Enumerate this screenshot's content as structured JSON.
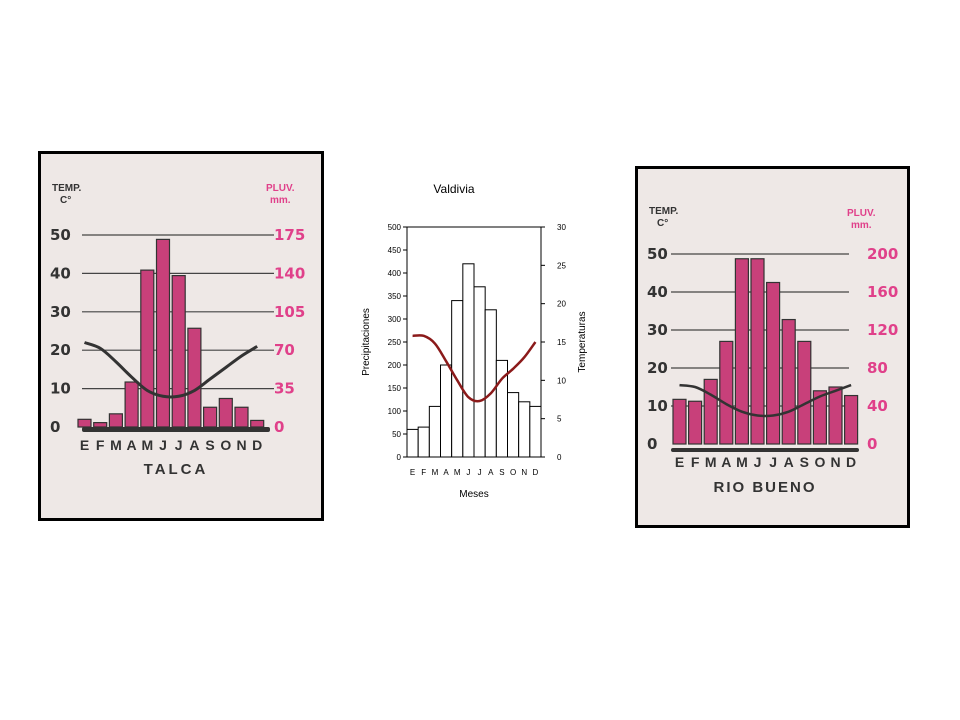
{
  "months": [
    "E",
    "F",
    "M",
    "A",
    "M",
    "J",
    "J",
    "A",
    "S",
    "O",
    "N",
    "D"
  ],
  "colors": {
    "bar_pink": "#c8407a",
    "temp_line_old": "#333333",
    "temp_line_valdivia": "#8b1a1a",
    "axis_pink": "#e0408a",
    "paper": "#eee8e6",
    "frame": "#000000"
  },
  "chart_data": [
    {
      "type": "bar",
      "title": "TALCA",
      "left_axis_title": [
        "TEMP.",
        "C°"
      ],
      "right_axis_title": [
        "PLUV.",
        "mm."
      ],
      "temp_ticks": [
        "50",
        "40",
        "30",
        "20",
        "10",
        "0"
      ],
      "pluv_ticks": [
        "175",
        "140",
        "105",
        "70",
        "35",
        "0"
      ],
      "categories": [
        "E",
        "F",
        "M",
        "A",
        "M",
        "J",
        "J",
        "A",
        "S",
        "O",
        "N",
        "D"
      ],
      "ylim_temp": [
        0,
        50
      ],
      "ylim_pluv": [
        0,
        175
      ],
      "series": [
        {
          "kind": "precipitation",
          "values": [
            7,
            4,
            12,
            41,
            143,
            171,
            138,
            90,
            18,
            26,
            18,
            6
          ]
        },
        {
          "kind": "temperature",
          "values": [
            22,
            20.5,
            17,
            13,
            9.5,
            8,
            8,
            9.5,
            12.5,
            15.5,
            18.5,
            21
          ]
        }
      ]
    },
    {
      "type": "bar",
      "title": "Valdivia",
      "xlabel": "Meses",
      "ylabel": "Precipitaciones",
      "y2label": "Temperaturas",
      "precip_ticks": [
        "500",
        "450",
        "400",
        "350",
        "300",
        "250",
        "200",
        "150",
        "100",
        "50",
        "0"
      ],
      "temp_ticks": [
        "30",
        "25",
        "20",
        "15",
        "10",
        "5",
        "0"
      ],
      "categories": [
        "E",
        "F",
        "M",
        "A",
        "M",
        "J",
        "J",
        "A",
        "S",
        "O",
        "N",
        "D"
      ],
      "ylim": [
        0,
        500
      ],
      "y2lim": [
        0,
        30
      ],
      "series": [
        {
          "kind": "precipitation",
          "values": [
            60,
            65,
            110,
            200,
            340,
            420,
            370,
            320,
            210,
            140,
            120,
            110
          ]
        },
        {
          "kind": "temperature",
          "values": [
            15.8,
            15.8,
            14.8,
            12.5,
            10,
            7.8,
            7.3,
            8.3,
            10.2,
            11.5,
            13,
            15
          ]
        }
      ]
    },
    {
      "type": "bar",
      "title": "RIO BUENO",
      "left_axis_title": [
        "TEMP.",
        "C°"
      ],
      "right_axis_title": [
        "PLUV.",
        "mm."
      ],
      "temp_ticks": [
        "50",
        "40",
        "30",
        "20",
        "10",
        "0"
      ],
      "pluv_ticks": [
        "200",
        "160",
        "120",
        "80",
        "40",
        "0"
      ],
      "categories": [
        "E",
        "F",
        "M",
        "A",
        "M",
        "J",
        "J",
        "A",
        "S",
        "O",
        "N",
        "D"
      ],
      "ylim_temp": [
        0,
        50
      ],
      "ylim_pluv": [
        0,
        200
      ],
      "series": [
        {
          "kind": "precipitation",
          "values": [
            47,
            45,
            68,
            108,
            195,
            195,
            170,
            131,
            108,
            56,
            60,
            51
          ]
        },
        {
          "kind": "temperature",
          "values": [
            15.5,
            15,
            13,
            10.5,
            8.5,
            7.5,
            7.5,
            8.5,
            10.5,
            12.5,
            14,
            15.5
          ]
        }
      ]
    }
  ]
}
